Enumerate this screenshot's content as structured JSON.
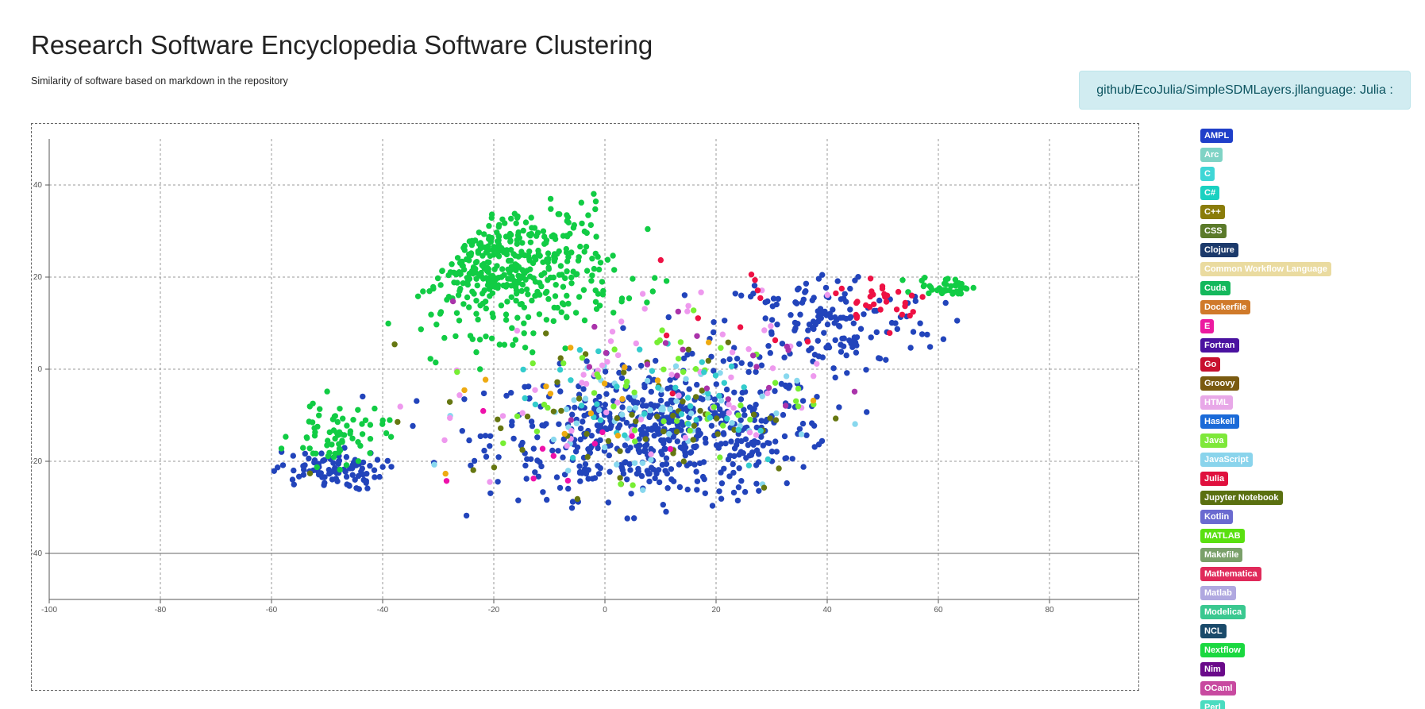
{
  "header": {
    "title": "Research Software Encyclopedia Software Clustering",
    "subtitle": "Similarity of software based on markdown in the repository"
  },
  "info_box": {
    "text": "github/EcoJulia/SimpleSDMLayers.jllanguage: Julia :"
  },
  "legend": [
    {
      "label": "AMPL",
      "color": "#1f3fc9"
    },
    {
      "label": "Arc",
      "color": "#7fd3c5"
    },
    {
      "label": "C",
      "color": "#3fd6d6"
    },
    {
      "label": "C#",
      "color": "#1ad1c1"
    },
    {
      "label": "C++",
      "color": "#8a7c0a"
    },
    {
      "label": "CSS",
      "color": "#5b7a2a"
    },
    {
      "label": "Clojure",
      "color": "#1c3a6b"
    },
    {
      "label": "Common Workflow Language",
      "color": "#eadba0"
    },
    {
      "label": "Cuda",
      "color": "#14b85c"
    },
    {
      "label": "Dockerfile",
      "color": "#d07a2a"
    },
    {
      "label": "E",
      "color": "#ec1aa0"
    },
    {
      "label": "Fortran",
      "color": "#4a12a0"
    },
    {
      "label": "Go",
      "color": "#c8102e"
    },
    {
      "label": "Groovy",
      "color": "#7a5a10"
    },
    {
      "label": "HTML",
      "color": "#e8a8e8"
    },
    {
      "label": "Haskell",
      "color": "#1a6ad8"
    },
    {
      "label": "Java",
      "color": "#7ee83a"
    },
    {
      "label": "JavaScript",
      "color": "#8ad4ec"
    },
    {
      "label": "Julia",
      "color": "#e0103e"
    },
    {
      "label": "Jupyter Notebook",
      "color": "#5a7010"
    },
    {
      "label": "Kotlin",
      "color": "#6a6ad0"
    },
    {
      "label": "MATLAB",
      "color": "#5ae010"
    },
    {
      "label": "Makefile",
      "color": "#7aa06a"
    },
    {
      "label": "Mathematica",
      "color": "#e02a5a"
    },
    {
      "label": "Matlab",
      "color": "#b0a8e0"
    },
    {
      "label": "Modelica",
      "color": "#3ac890"
    },
    {
      "label": "NCL",
      "color": "#1a4a6a"
    },
    {
      "label": "Nextflow",
      "color": "#1ad840"
    },
    {
      "label": "Nim",
      "color": "#6a0a8a"
    },
    {
      "label": "OCaml",
      "color": "#c84aa0"
    },
    {
      "label": "Perl",
      "color": "#4adcc0"
    }
  ],
  "chart_data": {
    "type": "scatter",
    "title": "",
    "xlabel": "",
    "ylabel": "",
    "xlim": [
      -100,
      96
    ],
    "ylim": [
      -50,
      50
    ],
    "xticks": [
      -100,
      -80,
      -60,
      -40,
      -20,
      0,
      20,
      40,
      60,
      80
    ],
    "yticks": [
      -40,
      -20,
      0,
      20,
      40
    ],
    "grid": true,
    "clusters": [
      {
        "name": "AMPL",
        "color": "#2244bb",
        "count": 560,
        "cx": 10,
        "cy": -14,
        "sx": 22,
        "sy": 10
      },
      {
        "name": "AMPL",
        "color": "#2244bb",
        "count": 160,
        "cx": 40,
        "cy": 10,
        "sx": 14,
        "sy": 8
      },
      {
        "name": "AMPL",
        "color": "#2244bb",
        "count": 90,
        "cx": -50,
        "cy": -22,
        "sx": 7,
        "sy": 3
      },
      {
        "name": "Nextflow",
        "color": "#11cc44",
        "count": 430,
        "cx": -18,
        "cy": 22,
        "sx": 14,
        "sy": 10
      },
      {
        "name": "Nextflow",
        "color": "#11cc44",
        "count": 70,
        "cx": -48,
        "cy": -14,
        "sx": 6,
        "sy": 5
      },
      {
        "name": "Nextflow",
        "color": "#11cc44",
        "count": 40,
        "cx": 62,
        "cy": 18,
        "sx": 4,
        "sy": 1.5
      },
      {
        "name": "JavaScript",
        "color": "#88d8ee",
        "count": 60,
        "cx": 5,
        "cy": -10,
        "sx": 20,
        "sy": 10
      },
      {
        "name": "HTML",
        "color": "#ee99ee",
        "count": 60,
        "cx": 5,
        "cy": -5,
        "sx": 25,
        "sy": 15
      },
      {
        "name": "Jupyter Notebook",
        "color": "#667711",
        "count": 60,
        "cx": 5,
        "cy": -10,
        "sx": 25,
        "sy": 12
      },
      {
        "name": "Java",
        "color": "#77ee33",
        "count": 50,
        "cx": 10,
        "cy": -5,
        "sx": 20,
        "sy": 12
      },
      {
        "name": "C",
        "color": "#33cccc",
        "count": 40,
        "cx": 10,
        "cy": -5,
        "sx": 20,
        "sy": 12
      },
      {
        "name": "Julia",
        "color": "#ee1144",
        "count": 30,
        "cx": 50,
        "cy": 15,
        "sx": 6,
        "sy": 4
      },
      {
        "name": "Julia",
        "color": "#ee1144",
        "count": 12,
        "cx": 30,
        "cy": 10,
        "sx": 15,
        "sy": 10
      },
      {
        "name": "Dockerfile",
        "color": "#eeaa11",
        "count": 15,
        "cx": 0,
        "cy": -5,
        "sx": 25,
        "sy": 12
      },
      {
        "name": "Kotlin",
        "color": "#aa33aa",
        "count": 20,
        "cx": 20,
        "cy": 0,
        "sx": 20,
        "sy": 10
      },
      {
        "name": "E",
        "color": "#ee11aa",
        "count": 10,
        "cx": -10,
        "cy": -15,
        "sx": 20,
        "sy": 8
      }
    ]
  }
}
